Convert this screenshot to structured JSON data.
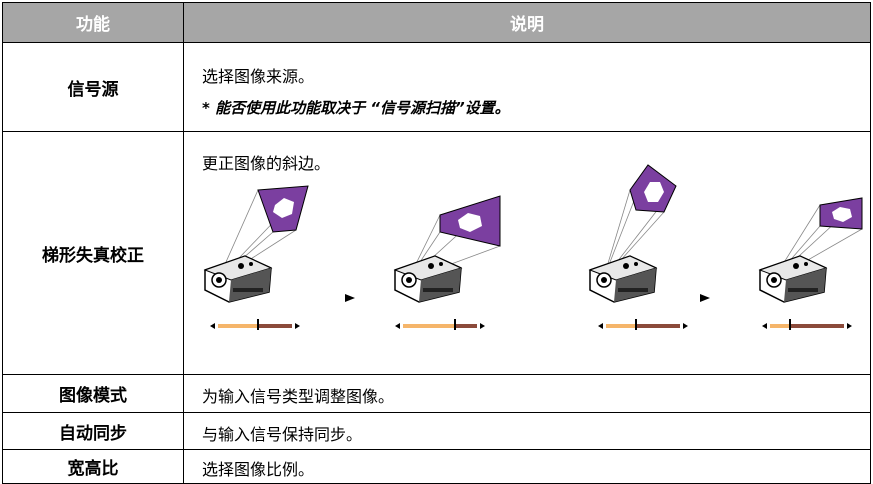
{
  "table": {
    "header": [
      "功能",
      "说明"
    ],
    "rows": [
      [
        "信号源",
        [
          "选择图像来源。",
          "* 能否使用此功能取决于 “信号源扫描”设置。"
        ]
      ],
      [
        "梯形失真校正",
        [
          "更正图像的斜边。"
        ]
      ],
      [
        "图像模式",
        [
          "为输入信号类型调整图像。"
        ]
      ],
      [
        "自动同步",
        [
          "与输入信号保持同步。"
        ]
      ],
      [
        "宽高比",
        [
          "选择图像比例。"
        ]
      ]
    ]
  }
}
